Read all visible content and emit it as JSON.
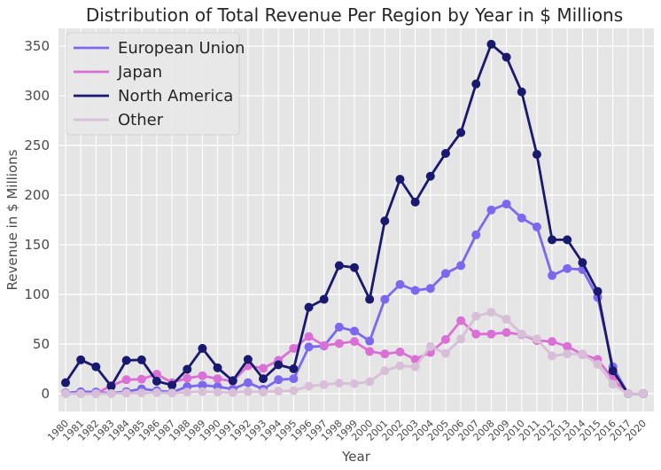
{
  "chart_data": {
    "type": "line",
    "title": "Distribution of Total Revenue Per Region by Year in $ Millions",
    "xlabel": "Year",
    "ylabel": "Revenue in $ Millions",
    "ylim": [
      -18,
      368
    ],
    "yticks": [
      0,
      50,
      100,
      150,
      200,
      250,
      300,
      350
    ],
    "grid": true,
    "legend_position": "top-left",
    "categories": [
      "1980",
      "1981",
      "1982",
      "1983",
      "1984",
      "1985",
      "1986",
      "1987",
      "1988",
      "1989",
      "1990",
      "1991",
      "1992",
      "1993",
      "1994",
      "1995",
      "1996",
      "1997",
      "1998",
      "1999",
      "2000",
      "2001",
      "2002",
      "2003",
      "2004",
      "2005",
      "2006",
      "2007",
      "2008",
      "2009",
      "2010",
      "2011",
      "2012",
      "2013",
      "2014",
      "2015",
      "2016",
      "2017",
      "2020"
    ],
    "series": [
      {
        "name": "European Union",
        "color": "#7b68ee",
        "values": [
          0.7,
          1.9,
          1.7,
          0.4,
          2.0,
          4.8,
          3.0,
          1.4,
          7.0,
          8.5,
          7.0,
          4.5,
          11.0,
          4.5,
          14.0,
          15.0,
          47.0,
          48.0,
          67.0,
          63.0,
          53.0,
          95.0,
          110.0,
          104.0,
          106.0,
          121.0,
          129.0,
          160.0,
          185.0,
          191.0,
          177.0,
          168.0,
          119.0,
          126.0,
          125.0,
          97.0,
          27.0,
          0.0,
          0.0
        ]
      },
      {
        "name": "Japan",
        "color": "#da70d6",
        "values": [
          0.0,
          0.0,
          0.0,
          8.0,
          14.0,
          14.5,
          19.5,
          11.0,
          15.5,
          18.0,
          15.0,
          12.5,
          28.0,
          25.5,
          33.5,
          45.5,
          57.5,
          48.5,
          50.5,
          52.5,
          42.5,
          40.0,
          42.0,
          34.5,
          41.5,
          54.5,
          73.5,
          60.0,
          60.0,
          61.5,
          59.5,
          53.5,
          52.5,
          47.5,
          39.5,
          34.5,
          14.5,
          0.0,
          0.0
        ]
      },
      {
        "name": "North America",
        "color": "#191970",
        "values": [
          11.0,
          34.0,
          27.0,
          7.5,
          33.5,
          34.0,
          12.5,
          8.5,
          24.5,
          45.5,
          26.0,
          13.0,
          34.5,
          15.0,
          29.0,
          25.0,
          87.0,
          95.0,
          129.0,
          127.0,
          95.0,
          174.0,
          216.0,
          193.0,
          219.0,
          242.0,
          263.0,
          312.0,
          352.0,
          339.0,
          304.0,
          241.0,
          155.0,
          155.0,
          132.0,
          103.0,
          23.0,
          0.0,
          0.0
        ]
      },
      {
        "name": "Other",
        "color": "#d8bfd8",
        "values": [
          0.0,
          0.0,
          0.0,
          0.0,
          0.5,
          0.7,
          1.0,
          0.5,
          1.5,
          2.0,
          1.5,
          1.0,
          2.0,
          1.5,
          2.5,
          3.0,
          7.5,
          9.0,
          10.5,
          10.0,
          12.0,
          23.0,
          28.0,
          27.0,
          47.5,
          40.5,
          55.0,
          78.0,
          82.0,
          75.0,
          60.0,
          55.0,
          38.0,
          40.0,
          40.0,
          29.5,
          9.5,
          0.0,
          0.0
        ]
      }
    ]
  }
}
